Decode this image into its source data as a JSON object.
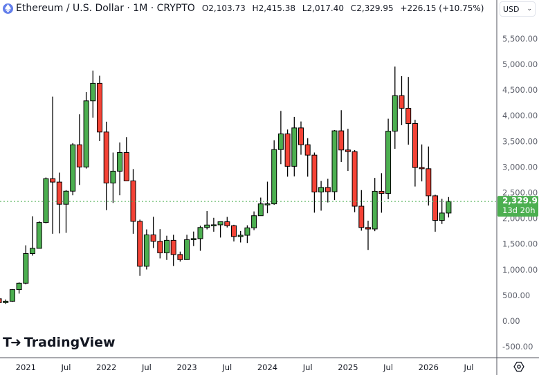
{
  "header": {
    "title": "Ethereum / U.S. Dollar · 1M · CRYPTO",
    "open_key": "O",
    "open": "2,103.73",
    "high_key": "H",
    "high": "2,415.38",
    "low_key": "L",
    "low": "2,017.40",
    "close_key": "C",
    "close": "2,329.95",
    "change": "+226.15 (+10.75%)"
  },
  "currency_button": {
    "label": "USD",
    "icon": "chevron-down-icon"
  },
  "logo_text": "TradingView",
  "price_label": {
    "price": "2,329.95",
    "countdown": "13d 20h",
    "value": 2329.95
  },
  "colors": {
    "up": "#4caf50",
    "down": "#f44336",
    "last_price": "#4caf50",
    "axis_text": "#5d606b"
  },
  "chart_data": {
    "type": "candlestick",
    "title": "Ethereum / U.S. Dollar · 1M · CRYPTO",
    "ylim": [
      -500,
      5800
    ],
    "y_ticks": [
      "5,500.00",
      "5,000.00",
      "4,500.00",
      "4,000.00",
      "3,500.00",
      "3,000.00",
      "2,500.00",
      "2,000.00",
      "1,500.00",
      "1,000.00",
      "500.00",
      "0.00",
      "-500.00"
    ],
    "y_tick_values": [
      5500,
      5000,
      4500,
      4000,
      3500,
      3000,
      2500,
      2000,
      1500,
      1000,
      500,
      0,
      -500
    ],
    "x_ticks": [
      {
        "label": "2021",
        "date": "2021-01"
      },
      {
        "label": "Jul",
        "date": "2021-07"
      },
      {
        "label": "2022",
        "date": "2022-01"
      },
      {
        "label": "Jul",
        "date": "2022-07"
      },
      {
        "label": "2023",
        "date": "2023-01"
      },
      {
        "label": "Jul",
        "date": "2023-07"
      },
      {
        "label": "2024",
        "date": "2024-01"
      },
      {
        "label": "Jul",
        "date": "2024-07"
      },
      {
        "label": "2025",
        "date": "2025-01"
      },
      {
        "label": "Jul",
        "date": "2025-07"
      },
      {
        "label": "2026",
        "date": "2026-01"
      },
      {
        "label": "Jul",
        "date": "2026-07"
      }
    ],
    "start": "2020-09",
    "ohlc": [
      [
        434,
        488,
        308,
        360
      ],
      [
        360,
        420,
        334,
        386
      ],
      [
        386,
        623,
        374,
        612
      ],
      [
        612,
        752,
        534,
        737
      ],
      [
        737,
        1475,
        714,
        1314
      ],
      [
        1314,
        2041,
        1274,
        1416
      ],
      [
        1416,
        1943,
        1436,
        1919
      ],
      [
        1919,
        2797,
        1904,
        2773
      ],
      [
        2773,
        4372,
        1700,
        2707
      ],
      [
        2707,
        2891,
        1707,
        2275
      ],
      [
        2275,
        2551,
        1718,
        2530
      ],
      [
        2530,
        3466,
        2450,
        3433
      ],
      [
        3433,
        4027,
        2651,
        3001
      ],
      [
        3001,
        4460,
        2970,
        4289
      ],
      [
        4289,
        4878,
        3962,
        4631
      ],
      [
        4631,
        4778,
        3505,
        3682
      ],
      [
        3682,
        3883,
        2159,
        2688
      ],
      [
        2688,
        3282,
        2300,
        2919
      ],
      [
        2919,
        3479,
        2450,
        3282
      ],
      [
        3282,
        3582,
        2727,
        2730
      ],
      [
        2730,
        2960,
        1700,
        1942
      ],
      [
        1942,
        1975,
        880,
        1067
      ],
      [
        1067,
        1785,
        1004,
        1678
      ],
      [
        1678,
        2030,
        1422,
        1553
      ],
      [
        1553,
        1790,
        1220,
        1328
      ],
      [
        1328,
        1662,
        1190,
        1572
      ],
      [
        1572,
        1680,
        1073,
        1295
      ],
      [
        1295,
        1352,
        1160,
        1196
      ],
      [
        1196,
        1680,
        1190,
        1585
      ],
      [
        1585,
        1743,
        1460,
        1605
      ],
      [
        1605,
        1857,
        1368,
        1822
      ],
      [
        1822,
        2142,
        1785,
        1870
      ],
      [
        1870,
        2011,
        1740,
        1874
      ],
      [
        1874,
        1929,
        1626,
        1934
      ],
      [
        1934,
        2028,
        1823,
        1857
      ],
      [
        1857,
        1875,
        1550,
        1646
      ],
      [
        1646,
        1754,
        1530,
        1671
      ],
      [
        1671,
        1865,
        1520,
        1815
      ],
      [
        1815,
        2135,
        1770,
        2052
      ],
      [
        2052,
        2405,
        2049,
        2282
      ],
      [
        2282,
        2715,
        2100,
        2283
      ],
      [
        2283,
        3522,
        2265,
        3340
      ],
      [
        3340,
        4093,
        3056,
        3645
      ],
      [
        3645,
        3730,
        2812,
        3014
      ],
      [
        3014,
        3977,
        2817,
        3762
      ],
      [
        3762,
        3887,
        3240,
        3434
      ],
      [
        3434,
        3562,
        2812,
        3232
      ],
      [
        3232,
        3282,
        2111,
        2513
      ],
      [
        2513,
        2728,
        2150,
        2602
      ],
      [
        2602,
        2770,
        2310,
        2519
      ],
      [
        2519,
        3720,
        2357,
        3705
      ],
      [
        3705,
        4107,
        3100,
        3332
      ],
      [
        3332,
        3745,
        2923,
        3300
      ],
      [
        3300,
        3330,
        2120,
        2237
      ],
      [
        2237,
        2550,
        1760,
        1822
      ],
      [
        1822,
        1955,
        1385,
        1793
      ],
      [
        1793,
        2788,
        1750,
        2528
      ],
      [
        2528,
        2880,
        2110,
        2486
      ],
      [
        2486,
        3941,
        2373,
        3698
      ],
      [
        3698,
        4956,
        3355,
        4390
      ],
      [
        4390,
        4770,
        3815,
        4145
      ],
      [
        4145,
        4755,
        3435,
        3848
      ],
      [
        3848,
        3920,
        2620,
        2990
      ],
      [
        2990,
        3440,
        2720,
        2967
      ],
      [
        2967,
        3400,
        2250,
        2440
      ],
      [
        2440,
        2460,
        1740,
        1960
      ],
      [
        1960,
        2380,
        1890,
        2103.73
      ],
      [
        2103.73,
        2415.38,
        2017.4,
        2329.95
      ]
    ]
  }
}
